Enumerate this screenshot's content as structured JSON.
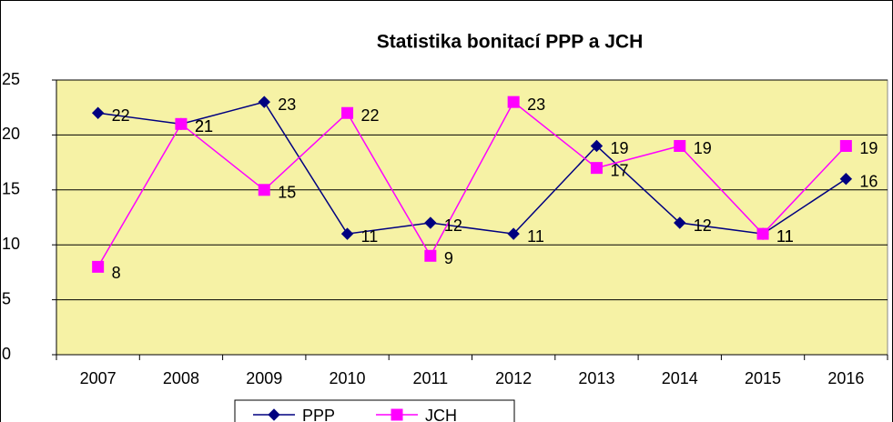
{
  "chart_data": {
    "type": "line",
    "title": "Statistika bonitací  PPP a JCH",
    "categories": [
      "2007",
      "2008",
      "2009",
      "2010",
      "2011",
      "2012",
      "2013",
      "2014",
      "2015",
      "2016"
    ],
    "series": [
      {
        "name": "PPP",
        "color": "#000080",
        "marker": "diamond",
        "values": [
          22,
          21,
          23,
          11,
          12,
          11,
          19,
          12,
          11,
          16
        ]
      },
      {
        "name": "JCH",
        "color": "#ff00ff",
        "marker": "square",
        "values": [
          8,
          21,
          15,
          22,
          9,
          23,
          17,
          19,
          11,
          19
        ]
      }
    ],
    "ylim": [
      0,
      25
    ],
    "yticks": [
      0,
      5,
      10,
      15,
      20,
      25
    ],
    "grid": true,
    "legend": "bottom"
  }
}
